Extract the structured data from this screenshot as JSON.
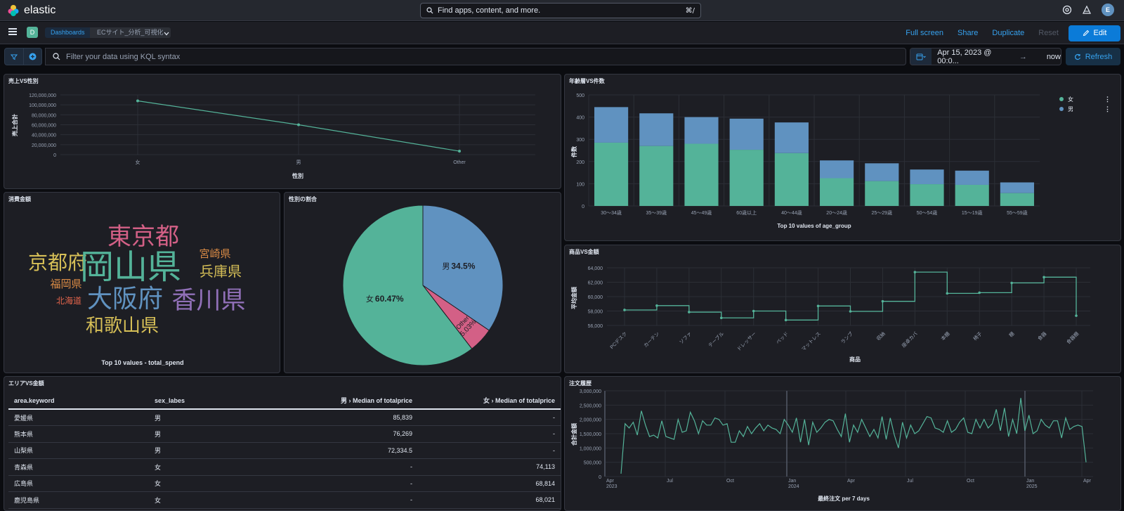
{
  "app": {
    "logo_text": "elastic",
    "search_placeholder": "Find apps, content, and more.",
    "search_shortcut": "⌘/",
    "avatar_letter": "E"
  },
  "nav": {
    "space_letter": "D",
    "breadcrumb_root": "Dashboards",
    "breadcrumb_current": "ECサイト_分析_可視化",
    "full_screen": "Full screen",
    "share": "Share",
    "duplicate": "Duplicate",
    "reset": "Reset",
    "edit": "Edit"
  },
  "filter": {
    "kql_placeholder": "Filter your data using KQL syntax",
    "date_start": "Apr 15, 2023 @ 00:0...",
    "date_end": "now",
    "refresh": "Refresh"
  },
  "panels": {
    "sales_gender": {
      "title": "売上VS性別",
      "chart_data": {
        "type": "line",
        "categories": [
          "女",
          "男",
          "Other"
        ],
        "values": [
          108000000,
          60000000,
          7000000
        ],
        "xlabel": "性別",
        "ylabel": "売上合計",
        "ylim": [
          0,
          120000000
        ],
        "yticks": [
          "0",
          "20,000,000",
          "40,000,000",
          "60,000,000",
          "80,000,000",
          "100,000,000",
          "120,000,000"
        ],
        "color": "#54b399"
      }
    },
    "age_count": {
      "title": "年齢層VS件数",
      "chart_data": {
        "type": "bar",
        "stacked": true,
        "categories": [
          "30～34歳",
          "35～39歳",
          "45～49歳",
          "60歳以上",
          "40～44歳",
          "20～24歳",
          "25～29歳",
          "50～54歳",
          "15～19歳",
          "55～59歳"
        ],
        "series": [
          {
            "name": "女",
            "color": "#54b399",
            "values": [
              285,
              270,
              280,
              253,
              238,
              125,
              112,
              98,
              95,
              58
            ]
          },
          {
            "name": "男",
            "color": "#6092c0",
            "values": [
              160,
              147,
              120,
              140,
              138,
              80,
              80,
              66,
              64,
              48
            ]
          }
        ],
        "xlabel": "Top 10 values of age_group",
        "ylabel": "件数",
        "ylim": [
          0,
          500
        ],
        "yticks": [
          "0",
          "100",
          "200",
          "300",
          "400",
          "500"
        ],
        "legend": "top-right"
      }
    },
    "spend_wordcloud": {
      "title": "消費金額",
      "caption": "Top 10 values - total_spend",
      "words": [
        {
          "text": "東京都",
          "color": "#d36086"
        },
        {
          "text": "京都府",
          "color": "#d6bf57"
        },
        {
          "text": "岡山県",
          "color": "#54b399"
        },
        {
          "text": "宮崎県",
          "color": "#da8b45"
        },
        {
          "text": "兵庫県",
          "color": "#d6bf57"
        },
        {
          "text": "福岡県",
          "color": "#da8b45"
        },
        {
          "text": "北海道",
          "color": "#e7664c"
        },
        {
          "text": "大阪府",
          "color": "#6092c0"
        },
        {
          "text": "香川県",
          "color": "#9170b8"
        },
        {
          "text": "和歌山県",
          "color": "#d6bf57"
        }
      ]
    },
    "gender_ratio": {
      "title": "性別の割合",
      "chart_data": {
        "type": "pie",
        "slices": [
          {
            "label": "男",
            "pct_text": "34.5%",
            "value": 34.5,
            "color": "#6092c0"
          },
          {
            "label": "Other",
            "pct_text": "5.03%",
            "value": 5.03,
            "color": "#d36086"
          },
          {
            "label": "女",
            "pct_text": "60.47%",
            "value": 60.47,
            "color": "#54b399"
          }
        ]
      }
    },
    "product_amount": {
      "title": "商品VS金額",
      "chart_data": {
        "type": "line",
        "step": true,
        "categories": [
          "PCデスク",
          "カーテン",
          "ソファ",
          "テーブル",
          "ドレッサー",
          "ベッド",
          "マットレス",
          "ランプ",
          "収納",
          "座卓カバ",
          "本棚",
          "椅子",
          "棚",
          "食器",
          "食器棚"
        ],
        "values": [
          58150,
          58750,
          57850,
          57050,
          58000,
          56750,
          58700,
          57950,
          59350,
          63400,
          60450,
          60550,
          61900,
          62700,
          57350
        ],
        "xlabel": "商品",
        "ylabel": "平均金額",
        "ylim": [
          56000,
          64000
        ],
        "yticks": [
          "56,000",
          "58,000",
          "60,000",
          "62,000",
          "64,000"
        ],
        "color": "#54b399"
      }
    },
    "area_table": {
      "title": "エリアVS金額",
      "columns": [
        "area.keyword",
        "sex_labes",
        "男 › Median of totalprice",
        "女 › Median of totalprice"
      ],
      "rows": [
        [
          "愛媛県",
          "男",
          "85,839",
          "-"
        ],
        [
          "熊本県",
          "男",
          "76,269",
          "-"
        ],
        [
          "山梨県",
          "男",
          "72,334.5",
          "-"
        ],
        [
          "青森県",
          "女",
          "-",
          "74,113"
        ],
        [
          "広島県",
          "女",
          "-",
          "68,814"
        ],
        [
          "鹿児島県",
          "女",
          "-",
          "68,021"
        ]
      ]
    },
    "order_history": {
      "title": "注文履歴",
      "chart_data": {
        "type": "line",
        "xlabel": "最終注文 per 7 days",
        "ylabel": "合計金額",
        "ylim": [
          0,
          3000000
        ],
        "yticks": [
          "0",
          "500,000",
          "1,000,000",
          "1,500,000",
          "2,000,000",
          "2,500,000",
          "3,000,000"
        ],
        "xticks": [
          "Apr\n2023",
          "Jul",
          "Oct",
          "Jan\n2024",
          "Apr",
          "Jul",
          "Oct",
          "Jan\n2025",
          "Apr"
        ],
        "values": [
          100000,
          1850000,
          1700000,
          1900000,
          1450000,
          2300000,
          1800000,
          1400000,
          1450000,
          1350000,
          1950000,
          1400000,
          1350000,
          1300000,
          2000000,
          1550000,
          1600000,
          2250000,
          1950000,
          1500000,
          1950000,
          1800000,
          1800000,
          2050000,
          2000000,
          1800000,
          1850000,
          1200000,
          1200000,
          1600000,
          1400000,
          1750000,
          1500000,
          1700000,
          1850000,
          1600000,
          1800000,
          1700000,
          1650000,
          1500000,
          2000000,
          1800000,
          1550000,
          2050000,
          1200000,
          2000000,
          1100000,
          1900000,
          1550000,
          1700000,
          1900000,
          2000000,
          1950000,
          1650000,
          1400000,
          2200000,
          1200000,
          1800000,
          1550000,
          2000000,
          1700000,
          1400000,
          1650000,
          1350000,
          2100000,
          1300000,
          2050000,
          1450000,
          1000000,
          1900000,
          1350000,
          1800000,
          1500000,
          1600000,
          1850000,
          2100000,
          2050000,
          1700000,
          1650000,
          1550000,
          1950000,
          1550000,
          1650000,
          1900000,
          2050000,
          1550000,
          1500000,
          2000000,
          1700000,
          2000000,
          1700000,
          1850000,
          2350000,
          1600000,
          2400000,
          1400000,
          2000000,
          1500000,
          2750000,
          1600000,
          2150000,
          1500000,
          1600000,
          2000000,
          1800000,
          1700000,
          1950000,
          1950000,
          1350000,
          2050000,
          1650000,
          1750000,
          1800000,
          1750000,
          500000
        ],
        "color": "#54b399"
      }
    }
  }
}
